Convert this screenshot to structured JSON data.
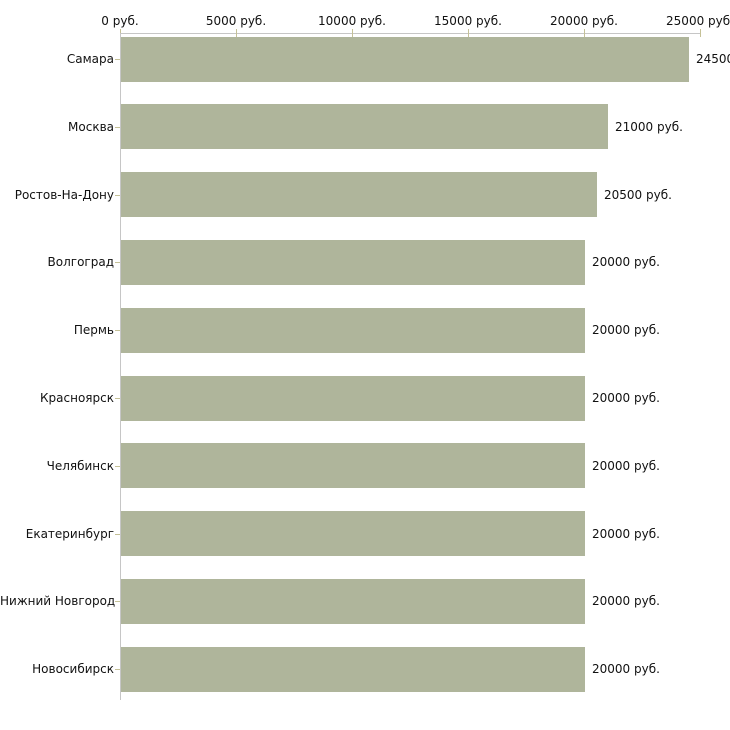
{
  "chart_data": {
    "type": "bar",
    "orientation": "horizontal",
    "title": "",
    "categories": [
      "Самара",
      "Москва",
      "Ростов-На-Дону",
      "Волгоград",
      "Пермь",
      "Красноярск",
      "Челябинск",
      "Екатеринбург",
      "Нижний Новгород",
      "Новосибирск"
    ],
    "values": [
      24500,
      21000,
      20500,
      20000,
      20000,
      20000,
      20000,
      20000,
      20000,
      20000
    ],
    "value_labels": [
      "24500",
      "21000 руб.",
      "20500 руб.",
      "20000 руб.",
      "20000 руб.",
      "20000 руб.",
      "20000 руб.",
      "20000 руб.",
      "20000 руб.",
      "20000 руб."
    ],
    "x_axis": {
      "position": "top",
      "min": 0,
      "max": 25000,
      "tick_values": [
        0,
        5000,
        10000,
        15000,
        20000,
        25000
      ],
      "tick_labels": [
        "0 руб.",
        "5000 руб.",
        "10000 руб.",
        "15000 руб.",
        "20000 руб.",
        "25000 руб."
      ]
    },
    "grid": false,
    "legend": false,
    "colors": {
      "bar": "#afb59b",
      "axis_line": "#c6c6c6",
      "tick_mark": "#c5c197",
      "text": "#111111",
      "background": "#ffffff"
    }
  }
}
